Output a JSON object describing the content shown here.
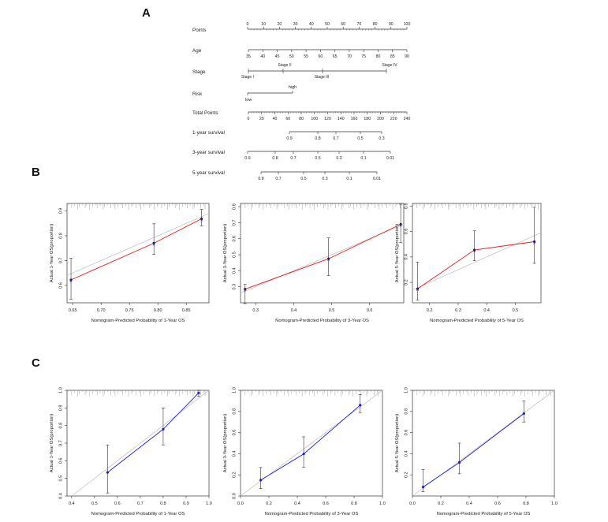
{
  "panels": {
    "a": "A",
    "b": "B",
    "c": "C"
  },
  "nomogram": {
    "rows": [
      {
        "label": "Points",
        "ticks": [
          "0",
          "10",
          "20",
          "30",
          "40",
          "50",
          "60",
          "70",
          "80",
          "90",
          "100"
        ]
      },
      {
        "label": "Age",
        "ticks": [
          "35",
          "40",
          "45",
          "50",
          "55",
          "60",
          "65",
          "70",
          "75",
          "80",
          "85",
          "90"
        ]
      },
      {
        "label": "Stage",
        "ticks_above": [
          "Stage II",
          "Stage IV"
        ],
        "ticks_below": [
          "Stage I",
          "Stage III"
        ]
      },
      {
        "label": "Risk",
        "ticks_above": [
          "high"
        ],
        "ticks_below": [
          "low"
        ]
      },
      {
        "label": "Total Points",
        "ticks": [
          "0",
          "20",
          "40",
          "60",
          "80",
          "100",
          "120",
          "140",
          "160",
          "180",
          "200",
          "220",
          "240"
        ]
      },
      {
        "label": "1-year survival",
        "ticks": [
          "0.9",
          "0.8",
          "0.7",
          "0.5",
          "0.3"
        ]
      },
      {
        "label": "3-year survival",
        "ticks": [
          "0.9",
          "0.8",
          "0.7",
          "0.5",
          "0.3",
          "0.1",
          "0.01"
        ]
      },
      {
        "label": "5-year survival",
        "ticks": [
          "0.8",
          "0.7",
          "0.5",
          "0.3",
          "0.1",
          "0.01"
        ]
      }
    ]
  },
  "colors": {
    "train_line": "#e41a1c",
    "valid_line": "#2020dd",
    "point_blue": "#1a1aee",
    "ideal": "#bbbbbb"
  },
  "chart_data": [
    {
      "type": "line",
      "panel": "B",
      "xlabel": "Nomogram-Predicted Probability of 1-Year OS",
      "ylabel": "Actual 1-Year OS(proportion)",
      "xlim": [
        0.64,
        0.89
      ],
      "ylim": [
        0.53,
        0.93
      ],
      "xticks": [
        "0.65",
        "0.70",
        "0.75",
        "0.80",
        "0.85"
      ],
      "yticks": [
        "0.6",
        "0.7",
        "0.8",
        "0.9"
      ],
      "series": [
        {
          "x": [
            0.647,
            0.793,
            0.877
          ],
          "y": [
            0.622,
            0.77,
            0.868
          ],
          "lower": [
            0.545,
            0.725,
            0.84
          ],
          "upper": [
            0.71,
            0.848,
            0.906
          ]
        }
      ]
    },
    {
      "type": "line",
      "panel": "B",
      "xlabel": "Nomogram-Predicted Probability of 3-Year OS",
      "ylabel": "Actual 3-Year OS(proportion)",
      "xlim": [
        0.26,
        0.69
      ],
      "ylim": [
        0.2,
        0.82
      ],
      "xticks": [
        "0.3",
        "0.4",
        "0.5",
        "0.6"
      ],
      "yticks": [
        "0.3",
        "0.4",
        "0.5",
        "0.6",
        "0.7",
        "0.8"
      ],
      "series": [
        {
          "x": [
            0.272,
            0.492,
            0.682
          ],
          "y": [
            0.285,
            0.475,
            0.69
          ],
          "lower": [
            0.195,
            0.37,
            0.575
          ],
          "upper": [
            0.315,
            0.605,
            0.815
          ]
        }
      ]
    },
    {
      "type": "line",
      "panel": "B",
      "xlabel": "Nomogram-Predicted Probability of 5-Year OS",
      "ylabel": "Actual 5-Year OS(proportion)",
      "xlim": [
        0.14,
        0.59
      ],
      "ylim": [
        0.04,
        0.82
      ],
      "xticks": [
        "0.2",
        "0.3",
        "0.4",
        "0.5"
      ],
      "yticks": [
        "0.2",
        "0.4",
        "0.6",
        "0.8"
      ],
      "series": [
        {
          "x": [
            0.158,
            0.357,
            0.567
          ],
          "y": [
            0.15,
            0.455,
            0.52
          ],
          "lower": [
            0.06,
            0.37,
            0.35
          ],
          "upper": [
            0.36,
            0.605,
            0.79
          ]
        }
      ]
    },
    {
      "type": "line",
      "panel": "C",
      "xlabel": "Nomogram-Predicted Probability of 1-Year OS",
      "ylabel": "Actual 1-Year OS(proportion)",
      "xlim": [
        0.38,
        1.0
      ],
      "ylim": [
        0.4,
        1.0
      ],
      "xticks": [
        "0.4",
        "0.5",
        "0.6",
        "0.7",
        "0.8",
        "0.9",
        "1.0"
      ],
      "yticks": [
        "0.4",
        "0.5",
        "0.6",
        "0.7",
        "0.8",
        "0.9",
        "1.0"
      ],
      "series": [
        {
          "x": [
            0.557,
            0.8,
            0.955
          ],
          "y": [
            0.534,
            0.779,
            0.985
          ],
          "lower": [
            0.417,
            0.69,
            0.965
          ],
          "upper": [
            0.69,
            0.9,
            1.0
          ]
        }
      ]
    },
    {
      "type": "line",
      "panel": "C",
      "xlabel": "Nomogram-Predicted Probability of 3-Year OS",
      "ylabel": "Actual 3-Year OS(proportion)",
      "xlim": [
        0.0,
        1.0
      ],
      "ylim": [
        0.0,
        1.0
      ],
      "xticks": [
        "0.0",
        "0.2",
        "0.4",
        "0.6",
        "0.8",
        "1.0"
      ],
      "yticks": [
        "0.0",
        "0.2",
        "0.4",
        "0.6",
        "0.8",
        "1.0"
      ],
      "series": [
        {
          "x": [
            0.142,
            0.445,
            0.843
          ],
          "y": [
            0.15,
            0.398,
            0.86
          ],
          "lower": [
            0.07,
            0.27,
            0.79
          ],
          "upper": [
            0.27,
            0.56,
            0.96
          ]
        }
      ]
    },
    {
      "type": "line",
      "panel": "C",
      "xlabel": "Nomogram-Predicted Probability of 5-Year OS",
      "ylabel": "Actual 5-Year OS(proportion)",
      "xlim": [
        0.0,
        1.0
      ],
      "ylim": [
        0.0,
        1.0
      ],
      "xticks": [
        "0.0",
        "0.2",
        "0.4",
        "0.6",
        "0.8",
        "1.0"
      ],
      "yticks": [
        "0.2",
        "0.4",
        "0.6",
        "0.8",
        "1.0"
      ],
      "series": [
        {
          "x": [
            0.075,
            0.331,
            0.785
          ],
          "y": [
            0.085,
            0.317,
            0.78
          ],
          "lower": [
            0.04,
            0.21,
            0.7
          ],
          "upper": [
            0.25,
            0.5,
            0.9
          ]
        }
      ]
    }
  ]
}
